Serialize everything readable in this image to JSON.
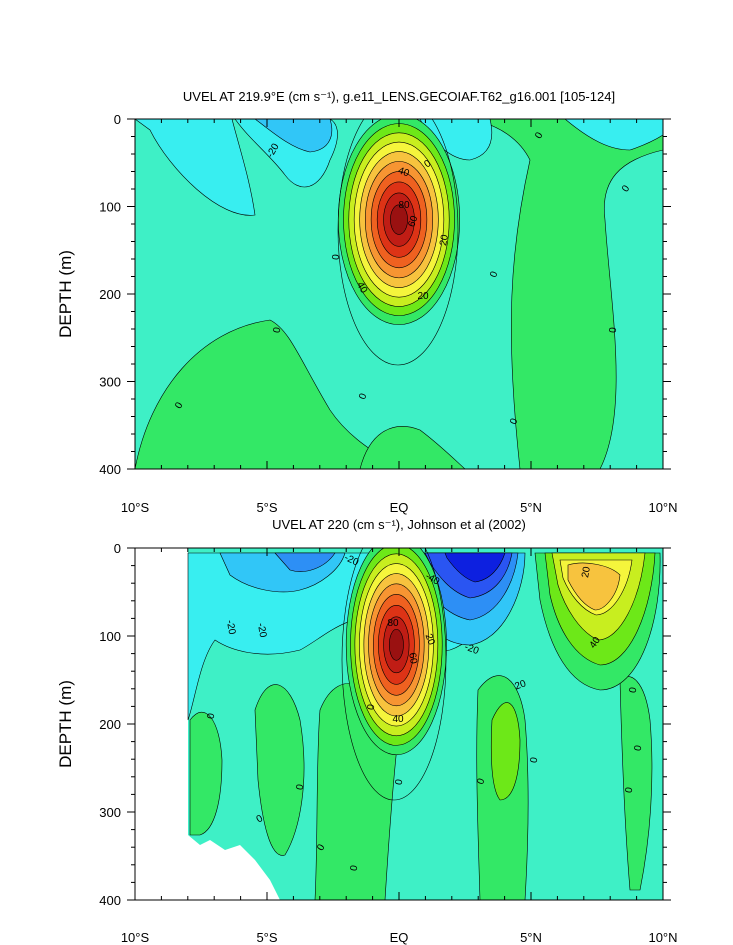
{
  "chart_data": [
    {
      "type": "contour",
      "title": "UVEL AT 219.9°E (cm s⁻¹), g.e11_LENS.GECOIAF.T62_g16.001 [105-124]",
      "ylabel": "DEPTH (m)",
      "xlabel": "",
      "x_ticks": [
        "10°S",
        "5°S",
        "EQ",
        "5°N",
        "10°N"
      ],
      "x_tick_values": [
        -10,
        -5,
        0,
        5,
        10
      ],
      "y_ticks": [
        "0",
        "100",
        "200",
        "300",
        "400"
      ],
      "y_tick_values": [
        0,
        100,
        200,
        300,
        400
      ],
      "xlim": [
        -10,
        10
      ],
      "ylim": [
        400,
        0
      ],
      "contour_interval": 10,
      "contour_labels": [
        "-20",
        "0",
        "40",
        "80",
        "60",
        "20",
        "0",
        "20",
        "40",
        "0",
        "0",
        "0",
        "0",
        "0",
        "0",
        "0",
        "0"
      ],
      "features": [
        {
          "type": "core",
          "x": 0,
          "y": 115,
          "max_value": 100
        },
        {
          "type": "negative_patch",
          "x": -4.3,
          "y": 20,
          "min_value": -20
        },
        {
          "type": "negative_patch",
          "x": 2.3,
          "y": 25,
          "min_value": -20
        }
      ]
    },
    {
      "type": "contour",
      "title": "UVEL AT 220 (cm s⁻¹), Johnson et al (2002)",
      "ylabel": "DEPTH (m)",
      "xlabel": "",
      "x_ticks": [
        "10°S",
        "5°S",
        "EQ",
        "5°N",
        "10°N"
      ],
      "x_tick_values": [
        -10,
        -5,
        0,
        5,
        10
      ],
      "y_ticks": [
        "0",
        "100",
        "200",
        "300",
        "400"
      ],
      "y_tick_values": [
        0,
        100,
        200,
        300,
        400
      ],
      "xlim": [
        -10,
        10
      ],
      "ylim": [
        400,
        0
      ],
      "contour_interval": 10,
      "contour_labels": [
        "-20",
        "-20",
        "-20",
        "-40",
        "80",
        "60",
        "20",
        "-20",
        "40",
        "20",
        "40",
        "20",
        "0",
        "0",
        "0",
        "0",
        "0",
        "0",
        "0",
        "0",
        "0",
        "0",
        "0",
        "0"
      ],
      "features": [
        {
          "type": "core",
          "x": -0.1,
          "y": 110,
          "max_value": 100
        },
        {
          "type": "negative_core",
          "x": 2.5,
          "y": 25,
          "min_value": -60
        },
        {
          "type": "positive_core",
          "x": 6.5,
          "y": 40,
          "max_value": 50
        }
      ]
    }
  ]
}
